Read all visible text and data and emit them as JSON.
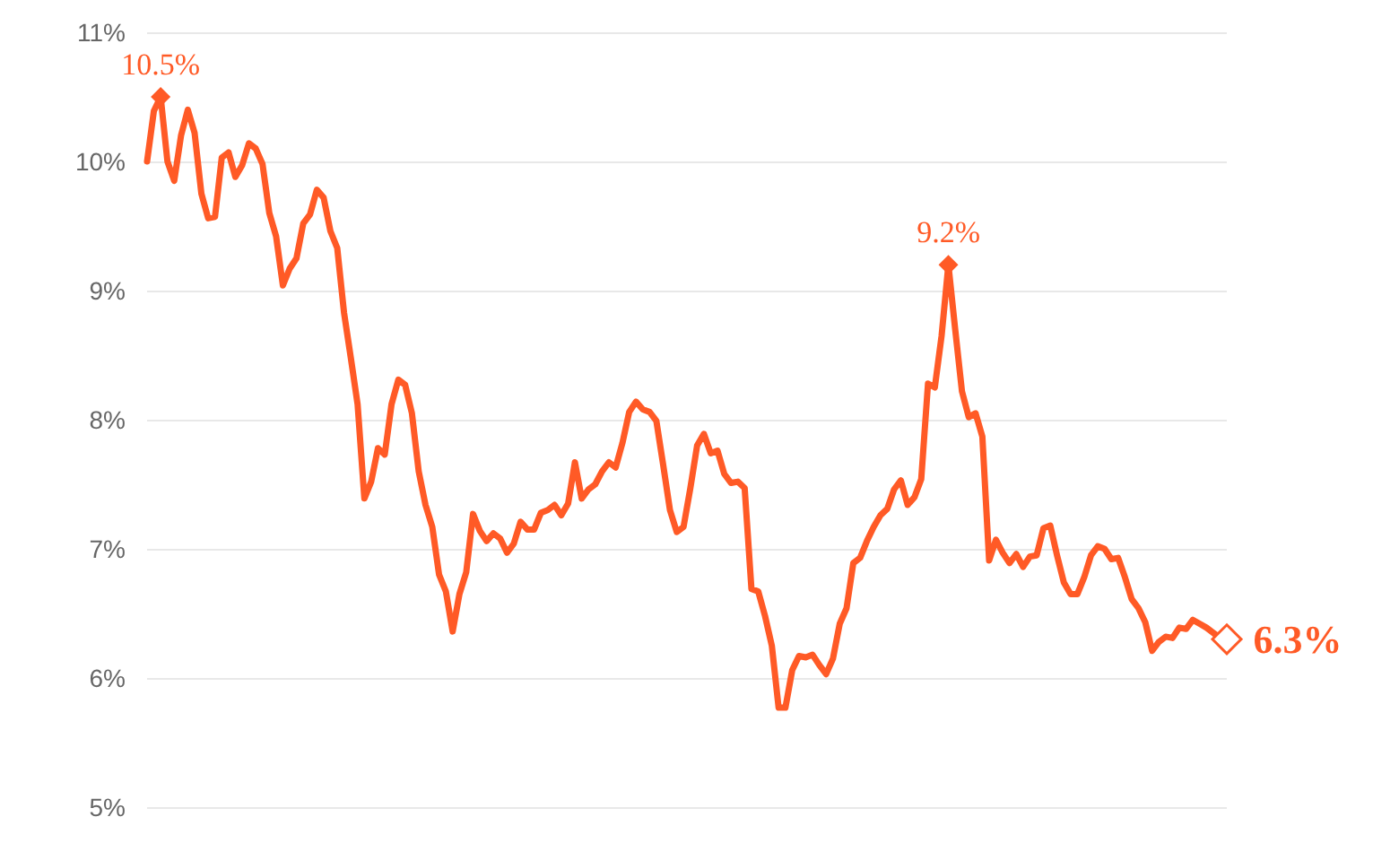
{
  "chart_data": {
    "type": "line",
    "categories": [
      null,
      null,
      null,
      null,
      null,
      null,
      null,
      null,
      null,
      null,
      null,
      null,
      null,
      null,
      null,
      null,
      null,
      null,
      null,
      null,
      null,
      null,
      null,
      null,
      null,
      null,
      null,
      null,
      null,
      null,
      null,
      null,
      null,
      null,
      null,
      null,
      null,
      null,
      null,
      null,
      null,
      null,
      null,
      null,
      null,
      null,
      null,
      null,
      null,
      null,
      null,
      null,
      null,
      null,
      null,
      null,
      null,
      null,
      null,
      null,
      null,
      null,
      null,
      null,
      null,
      null,
      null,
      null,
      null,
      null,
      null,
      null,
      null,
      null,
      null,
      null,
      null,
      null,
      null,
      null,
      null,
      null,
      null,
      null,
      null,
      null,
      null,
      null,
      null,
      null,
      null,
      null,
      null,
      null,
      null,
      null,
      null,
      null,
      null,
      null,
      null,
      null,
      null,
      null,
      null,
      null,
      null,
      null,
      null,
      null,
      null,
      null,
      null,
      null,
      null,
      null,
      null,
      null,
      null,
      null,
      null,
      null,
      null,
      null,
      null,
      null,
      null,
      null,
      null,
      null,
      null,
      null,
      null,
      null,
      null,
      null,
      null,
      null,
      null,
      null,
      null,
      null,
      null,
      null,
      null,
      null,
      null,
      null,
      null,
      null,
      null,
      null,
      null,
      null,
      null,
      null,
      null,
      null,
      null,
      null
    ],
    "series": [
      {
        "color": "#ff5a26",
        "values": [
          10.0,
          10.39,
          10.5,
          10.0,
          9.85,
          10.2,
          10.4,
          10.22,
          9.75,
          9.56,
          9.57,
          10.03,
          10.07,
          9.88,
          9.97,
          10.14,
          10.1,
          9.98,
          9.6,
          9.42,
          9.04,
          9.17,
          9.25,
          9.52,
          9.59,
          9.78,
          9.72,
          9.46,
          9.33,
          8.83,
          8.48,
          8.12,
          7.39,
          7.52,
          7.78,
          7.73,
          8.12,
          8.31,
          8.27,
          8.05,
          7.6,
          7.34,
          7.17,
          6.8,
          6.67,
          6.36,
          6.65,
          6.82,
          7.27,
          7.14,
          7.06,
          7.12,
          7.08,
          6.97,
          7.04,
          7.21,
          7.15,
          7.15,
          7.28,
          7.3,
          7.34,
          7.26,
          7.35,
          7.67,
          7.39,
          7.46,
          7.5,
          7.6,
          7.67,
          7.63,
          7.82,
          8.06,
          8.14,
          8.08,
          8.06,
          7.99,
          7.65,
          7.3,
          7.13,
          7.17,
          7.47,
          7.8,
          7.89,
          7.74,
          7.76,
          7.58,
          7.51,
          7.52,
          7.47,
          6.69,
          6.67,
          6.48,
          6.25,
          5.77,
          5.77,
          6.06,
          6.17,
          6.16,
          6.18,
          6.1,
          6.03,
          6.15,
          6.42,
          6.54,
          6.89,
          6.93,
          7.06,
          7.17,
          7.26,
          7.31,
          7.46,
          7.53,
          7.34,
          7.4,
          7.54,
          8.28,
          8.25,
          8.65,
          9.2,
          8.7,
          8.22,
          8.02,
          8.05,
          7.87,
          6.91,
          7.07,
          6.97,
          6.89,
          6.96,
          6.86,
          6.94,
          6.95,
          7.16,
          7.18,
          6.95,
          6.74,
          6.65,
          6.65,
          6.78,
          6.95,
          7.02,
          7.0,
          6.92,
          6.93,
          6.78,
          6.61,
          6.54,
          6.43,
          6.21,
          6.28,
          6.32,
          6.31,
          6.39,
          6.38,
          6.45,
          6.42,
          6.39,
          6.35,
          6.31,
          6.3
        ]
      }
    ],
    "ylim": [
      5,
      11
    ],
    "yticks": [
      {
        "value": 5,
        "label": "5%"
      },
      {
        "value": 6,
        "label": "6%"
      },
      {
        "value": 7,
        "label": "7%"
      },
      {
        "value": 8,
        "label": "8%"
      },
      {
        "value": 9,
        "label": "9%"
      },
      {
        "value": 10,
        "label": "10%"
      },
      {
        "value": 11,
        "label": "11%"
      }
    ],
    "grid": "y",
    "marker": "none",
    "line_style": "solid",
    "annotations": [
      {
        "text": "10.5%",
        "y": 10.5
      },
      {
        "text": "9.2%",
        "y": 9.2
      },
      "6.3%"
    ]
  }
}
